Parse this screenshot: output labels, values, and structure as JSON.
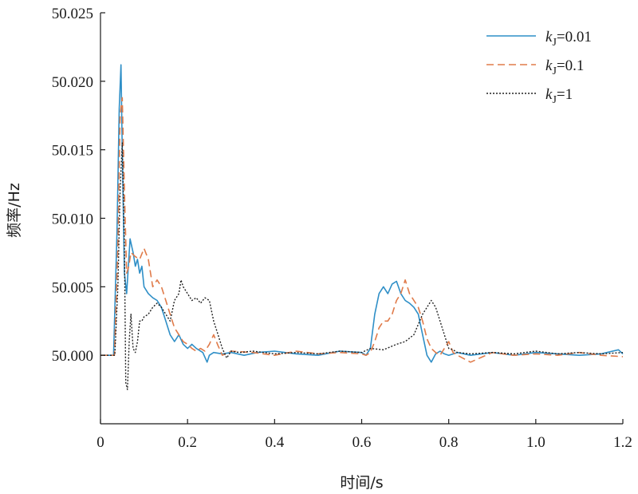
{
  "chart_data": {
    "type": "line",
    "xlabel": "时间/s",
    "ylabel": "频率/Hz",
    "xlim": [
      0,
      1.2
    ],
    "ylim": [
      49.995,
      50.025
    ],
    "xticks": [
      0,
      0.2,
      0.4,
      0.6,
      0.8,
      1.0,
      1.2
    ],
    "xtick_labels": [
      "0",
      "0.2",
      "0.4",
      "0.6",
      "0.8",
      "1.0",
      "1.2"
    ],
    "yticks": [
      50.0,
      50.005,
      50.01,
      50.015,
      50.02,
      50.025
    ],
    "ytick_labels": [
      "50.000",
      "50.005",
      "50.010",
      "50.015",
      "50.020",
      "50.025"
    ],
    "grid": false,
    "legend_position": "top-right",
    "series": [
      {
        "name_italic": "k",
        "name_sub": "J",
        "name_suffix": "=0.01",
        "color": "#2f8fc7",
        "style": "solid",
        "x": [
          0,
          0.025,
          0.03,
          0.038,
          0.043,
          0.047,
          0.05,
          0.055,
          0.06,
          0.068,
          0.075,
          0.08,
          0.085,
          0.09,
          0.095,
          0.1,
          0.11,
          0.12,
          0.13,
          0.14,
          0.15,
          0.16,
          0.17,
          0.18,
          0.19,
          0.2,
          0.21,
          0.22,
          0.235,
          0.245,
          0.25,
          0.26,
          0.28,
          0.3,
          0.33,
          0.36,
          0.4,
          0.45,
          0.5,
          0.55,
          0.6,
          0.61,
          0.62,
          0.63,
          0.64,
          0.65,
          0.66,
          0.67,
          0.68,
          0.69,
          0.7,
          0.71,
          0.72,
          0.73,
          0.74,
          0.75,
          0.76,
          0.77,
          0.78,
          0.79,
          0.8,
          0.82,
          0.85,
          0.9,
          0.95,
          1.0,
          1.05,
          1.1,
          1.15,
          1.19,
          1.2
        ],
        "y": [
          50.0,
          50.0,
          50.0,
          50.009,
          50.018,
          50.0212,
          50.015,
          50.006,
          50.0045,
          50.0085,
          50.0075,
          50.0065,
          50.007,
          50.006,
          50.0065,
          50.005,
          50.0045,
          50.0042,
          50.004,
          50.0035,
          50.0025,
          50.0015,
          50.001,
          50.0015,
          50.0008,
          50.0005,
          50.0008,
          50.0005,
          50.0002,
          49.9995,
          50.0,
          50.0002,
          50.0001,
          50.0002,
          50.0,
          50.0002,
          50.0003,
          50.0001,
          50.0,
          50.0003,
          50.0002,
          50.0,
          50.0005,
          50.003,
          50.0045,
          50.005,
          50.0045,
          50.0052,
          50.0054,
          50.0045,
          50.004,
          50.0038,
          50.0035,
          50.003,
          50.0015,
          50.0,
          49.9995,
          50.0001,
          50.0003,
          50.0001,
          50.0,
          50.0002,
          50.0,
          50.0002,
          50.0,
          50.0002,
          50.0001,
          50.0,
          50.0001,
          50.0004,
          50.0001
        ]
      },
      {
        "name_italic": "k",
        "name_sub": "J",
        "name_suffix": "=0.1",
        "color": "#e07b4a",
        "style": "dashed",
        "x": [
          0,
          0.025,
          0.032,
          0.04,
          0.045,
          0.05,
          0.055,
          0.06,
          0.065,
          0.07,
          0.08,
          0.09,
          0.1,
          0.11,
          0.12,
          0.13,
          0.14,
          0.15,
          0.16,
          0.17,
          0.18,
          0.19,
          0.2,
          0.21,
          0.22,
          0.23,
          0.24,
          0.25,
          0.26,
          0.27,
          0.28,
          0.3,
          0.35,
          0.4,
          0.45,
          0.5,
          0.55,
          0.6,
          0.61,
          0.62,
          0.63,
          0.64,
          0.65,
          0.66,
          0.67,
          0.68,
          0.69,
          0.7,
          0.71,
          0.72,
          0.73,
          0.74,
          0.75,
          0.76,
          0.77,
          0.78,
          0.79,
          0.8,
          0.81,
          0.82,
          0.85,
          0.9,
          0.95,
          1.0,
          1.05,
          1.1,
          1.15,
          1.2
        ],
        "y": [
          50.0,
          50.0,
          50.0,
          50.008,
          50.0175,
          50.0188,
          50.012,
          50.006,
          50.0065,
          50.0075,
          50.0072,
          50.007,
          50.0078,
          50.007,
          50.005,
          50.0055,
          50.005,
          50.004,
          50.003,
          50.002,
          50.0015,
          50.001,
          50.0008,
          50.0005,
          50.0003,
          50.0005,
          50.0003,
          50.0008,
          50.0015,
          50.0007,
          50.0,
          50.0003,
          50.0002,
          50.0,
          50.0003,
          50.0001,
          50.0002,
          50.0001,
          50.0,
          50.0002,
          50.001,
          50.002,
          50.0025,
          50.0025,
          50.003,
          50.004,
          50.0045,
          50.0055,
          50.0045,
          50.004,
          50.0035,
          50.0025,
          50.0012,
          50.0005,
          50.0002,
          50.0,
          50.0005,
          50.001,
          50.0002,
          50.0,
          49.9995,
          50.0002,
          50.0,
          50.0001,
          50.0,
          50.0002,
          50.0,
          49.9999
        ]
      },
      {
        "name_italic": "k",
        "name_sub": "J",
        "name_suffix": "=1",
        "color": "#222222",
        "style": "dotted",
        "x": [
          0,
          0.025,
          0.033,
          0.04,
          0.045,
          0.05,
          0.055,
          0.058,
          0.062,
          0.066,
          0.07,
          0.075,
          0.08,
          0.085,
          0.09,
          0.095,
          0.1,
          0.11,
          0.12,
          0.13,
          0.14,
          0.15,
          0.16,
          0.17,
          0.18,
          0.185,
          0.19,
          0.2,
          0.21,
          0.22,
          0.23,
          0.24,
          0.25,
          0.26,
          0.27,
          0.28,
          0.29,
          0.3,
          0.32,
          0.35,
          0.4,
          0.45,
          0.5,
          0.55,
          0.6,
          0.62,
          0.65,
          0.68,
          0.7,
          0.72,
          0.74,
          0.75,
          0.76,
          0.77,
          0.78,
          0.79,
          0.8,
          0.81,
          0.82,
          0.85,
          0.9,
          0.95,
          1.0,
          1.05,
          1.1,
          1.15,
          1.2
        ],
        "y": [
          50.0,
          50.0,
          50.0,
          50.005,
          50.012,
          50.0155,
          50.008,
          49.998,
          49.9975,
          50.001,
          50.003,
          50.0005,
          50.0002,
          50.001,
          50.0025,
          50.0025,
          50.0028,
          50.003,
          50.0035,
          50.0038,
          50.0035,
          50.003,
          50.0025,
          50.004,
          50.0045,
          50.0055,
          50.005,
          50.0045,
          50.004,
          50.0042,
          50.0038,
          50.0042,
          50.004,
          50.0025,
          50.0015,
          50.0005,
          49.9998,
          50.0003,
          50.0002,
          50.0003,
          50.0001,
          50.0002,
          50.0001,
          50.0003,
          50.0002,
          50.0005,
          50.0004,
          50.0008,
          50.001,
          50.0015,
          50.003,
          50.0035,
          50.004,
          50.0035,
          50.0025,
          50.0015,
          50.0005,
          50.0004,
          50.0002,
          50.0001,
          50.0002,
          50.0001,
          50.0003,
          50.0001,
          50.0002,
          50.0001,
          50.0002
        ]
      }
    ]
  }
}
